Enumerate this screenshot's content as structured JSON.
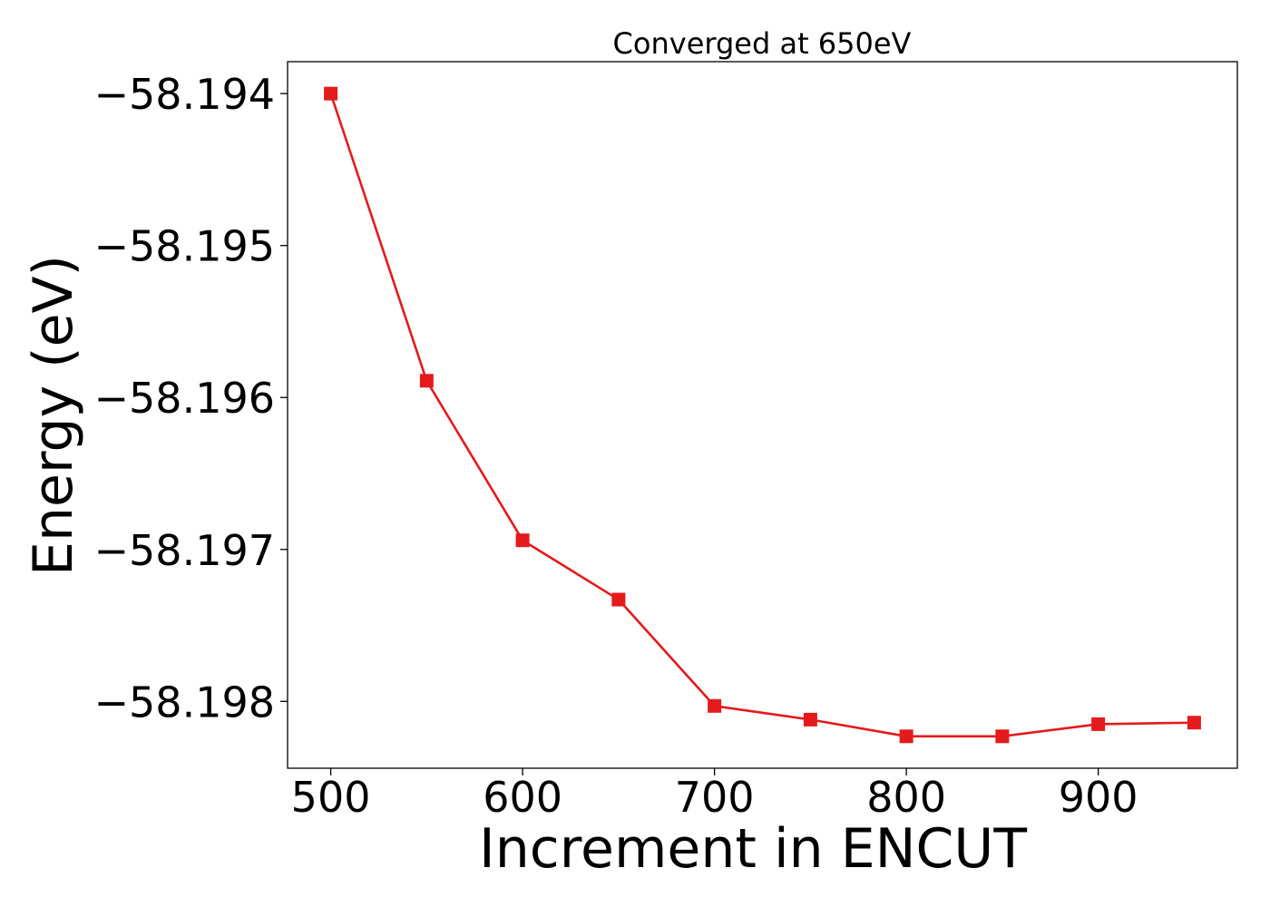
{
  "chart_data": {
    "type": "line",
    "title": "Converged at 650eV",
    "xlabel": "Increment in ENCUT",
    "ylabel": "Energy (eV)",
    "x": [
      500,
      550,
      600,
      650,
      700,
      750,
      800,
      850,
      900,
      950
    ],
    "series": [
      {
        "values": [
          -58.194,
          -58.19589,
          -58.19694,
          -58.19733,
          -58.19803,
          -58.19812,
          -58.19823,
          -58.19823,
          -58.19815,
          -58.19814
        ],
        "color": "#e41a1c",
        "marker": "square"
      }
    ],
    "xlim": [
      477.5,
      972.5
    ],
    "ylim": [
      -58.19844,
      -58.19379
    ],
    "xticks": [
      500,
      600,
      700,
      800,
      900
    ],
    "xtick_labels": [
      "500",
      "600",
      "700",
      "800",
      "900"
    ],
    "yticks": [
      -58.194,
      -58.195,
      -58.196,
      -58.197,
      -58.198
    ],
    "ytick_labels": [
      "−58.194",
      "−58.195",
      "−58.196",
      "−58.197",
      "−58.198"
    ],
    "grid": false,
    "legend": "none"
  }
}
